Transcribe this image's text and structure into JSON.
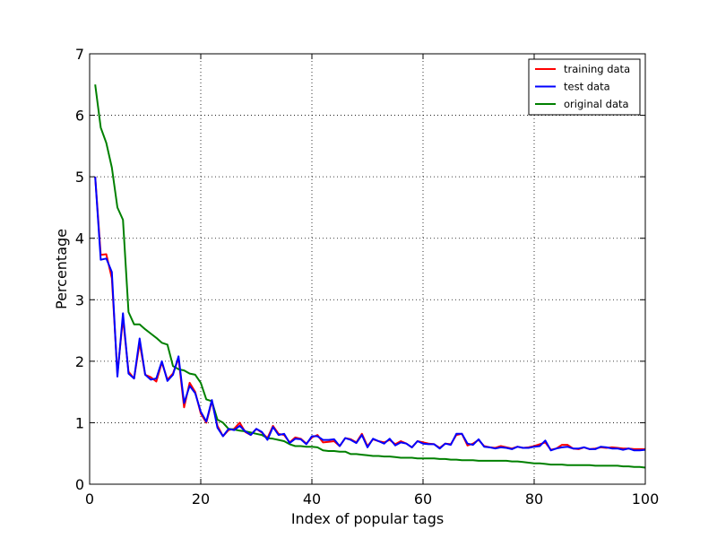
{
  "chart_data": {
    "type": "line",
    "title": "",
    "xlabel": "Index of popular tags",
    "ylabel": "Percentage",
    "xlim": [
      0,
      100
    ],
    "ylim": [
      0,
      7
    ],
    "x_ticks": [
      "0",
      "20",
      "40",
      "60",
      "80",
      "100"
    ],
    "y_ticks": [
      "0",
      "1",
      "2",
      "3",
      "4",
      "5",
      "6",
      "7"
    ],
    "grid": true,
    "legend_position": "top-right",
    "x": [
      1,
      2,
      3,
      4,
      5,
      6,
      7,
      8,
      9,
      10,
      11,
      12,
      13,
      14,
      15,
      16,
      17,
      18,
      19,
      20,
      21,
      22,
      23,
      24,
      25,
      26,
      27,
      28,
      29,
      30,
      31,
      32,
      33,
      34,
      35,
      36,
      37,
      38,
      39,
      40,
      41,
      42,
      43,
      44,
      45,
      46,
      47,
      48,
      49,
      50,
      51,
      52,
      53,
      54,
      55,
      56,
      57,
      58,
      59,
      60,
      61,
      62,
      63,
      64,
      65,
      66,
      67,
      68,
      69,
      70,
      71,
      72,
      73,
      74,
      75,
      76,
      77,
      78,
      79,
      80,
      81,
      82,
      83,
      84,
      85,
      86,
      87,
      88,
      89,
      90,
      91,
      92,
      93,
      94,
      95,
      96,
      97,
      98,
      99,
      100
    ],
    "series": [
      {
        "name": "training data",
        "color": "#ff0000",
        "values": [
          5.0,
          3.73,
          3.74,
          3.35,
          1.8,
          2.7,
          1.83,
          1.72,
          2.3,
          1.78,
          1.74,
          1.67,
          1.98,
          1.7,
          1.8,
          2.05,
          1.25,
          1.65,
          1.5,
          1.15,
          1.0,
          1.35,
          0.95,
          0.78,
          0.88,
          0.9,
          1.0,
          0.85,
          0.8,
          0.9,
          0.84,
          0.75,
          0.95,
          0.82,
          0.8,
          0.68,
          0.76,
          0.74,
          0.66,
          0.76,
          0.8,
          0.68,
          0.69,
          0.7,
          0.62,
          0.75,
          0.73,
          0.68,
          0.82,
          0.62,
          0.73,
          0.7,
          0.68,
          0.72,
          0.65,
          0.7,
          0.66,
          0.6,
          0.7,
          0.68,
          0.66,
          0.65,
          0.59,
          0.66,
          0.65,
          0.8,
          0.82,
          0.63,
          0.66,
          0.72,
          0.62,
          0.6,
          0.59,
          0.62,
          0.6,
          0.58,
          0.61,
          0.59,
          0.6,
          0.62,
          0.65,
          0.68,
          0.56,
          0.58,
          0.64,
          0.64,
          0.58,
          0.57,
          0.6,
          0.57,
          0.58,
          0.6,
          0.59,
          0.6,
          0.59,
          0.58,
          0.58,
          0.57,
          0.57,
          0.57
        ]
      },
      {
        "name": "test data",
        "color": "#0000ff",
        "values": [
          5.0,
          3.65,
          3.67,
          3.45,
          1.75,
          2.78,
          1.8,
          1.72,
          2.37,
          1.78,
          1.7,
          1.72,
          2.0,
          1.68,
          1.78,
          2.08,
          1.32,
          1.6,
          1.48,
          1.18,
          1.02,
          1.37,
          0.92,
          0.78,
          0.9,
          0.88,
          0.95,
          0.86,
          0.8,
          0.9,
          0.85,
          0.72,
          0.93,
          0.8,
          0.82,
          0.67,
          0.74,
          0.73,
          0.65,
          0.78,
          0.78,
          0.72,
          0.72,
          0.73,
          0.62,
          0.75,
          0.72,
          0.67,
          0.8,
          0.6,
          0.74,
          0.7,
          0.66,
          0.74,
          0.63,
          0.68,
          0.66,
          0.6,
          0.7,
          0.66,
          0.65,
          0.65,
          0.58,
          0.66,
          0.64,
          0.82,
          0.82,
          0.66,
          0.64,
          0.73,
          0.61,
          0.6,
          0.58,
          0.6,
          0.59,
          0.57,
          0.61,
          0.59,
          0.59,
          0.61,
          0.62,
          0.71,
          0.55,
          0.58,
          0.6,
          0.61,
          0.58,
          0.58,
          0.6,
          0.57,
          0.57,
          0.61,
          0.6,
          0.58,
          0.58,
          0.56,
          0.58,
          0.55,
          0.55,
          0.56
        ]
      },
      {
        "name": "original data",
        "color": "#008000",
        "values": [
          6.5,
          5.8,
          5.55,
          5.15,
          4.5,
          4.3,
          2.8,
          2.6,
          2.6,
          2.52,
          2.45,
          2.38,
          2.3,
          2.27,
          1.92,
          1.87,
          1.85,
          1.8,
          1.78,
          1.65,
          1.38,
          1.35,
          1.05,
          1.0,
          0.9,
          0.89,
          0.87,
          0.86,
          0.84,
          0.82,
          0.8,
          0.75,
          0.74,
          0.72,
          0.7,
          0.65,
          0.62,
          0.62,
          0.61,
          0.61,
          0.6,
          0.55,
          0.54,
          0.54,
          0.53,
          0.53,
          0.49,
          0.49,
          0.48,
          0.47,
          0.46,
          0.46,
          0.45,
          0.45,
          0.44,
          0.43,
          0.43,
          0.43,
          0.42,
          0.42,
          0.42,
          0.42,
          0.41,
          0.41,
          0.4,
          0.4,
          0.39,
          0.39,
          0.39,
          0.38,
          0.38,
          0.38,
          0.38,
          0.38,
          0.38,
          0.37,
          0.37,
          0.36,
          0.35,
          0.34,
          0.34,
          0.33,
          0.32,
          0.32,
          0.32,
          0.31,
          0.31,
          0.31,
          0.31,
          0.31,
          0.3,
          0.3,
          0.3,
          0.3,
          0.3,
          0.29,
          0.29,
          0.28,
          0.28,
          0.27
        ]
      }
    ]
  }
}
